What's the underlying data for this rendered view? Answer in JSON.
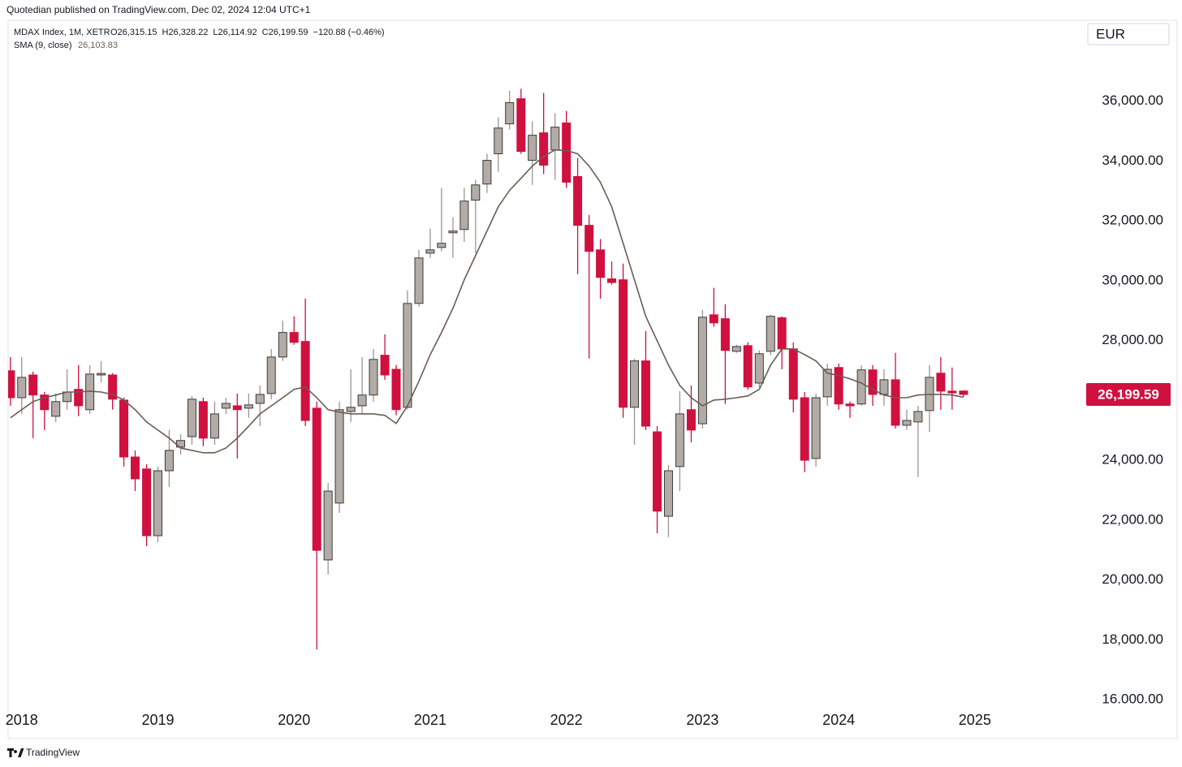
{
  "header": "Quotedian published on TradingView.com, Dec 02, 2024 12:04 UTC+1",
  "footer": "TradingView",
  "currency": "EUR",
  "chart_data": {
    "type": "candlestick",
    "title": "MDAX Index, 1M, XETR",
    "legend_values": [
      "O26,315.15",
      "H26,328.22",
      "L26,114.92",
      "C26,199.59",
      "−120.88 (−0.46%)"
    ],
    "up_color": "#b3aca6",
    "down_color": "#d0103f",
    "x": [
      2017.917,
      2018.0,
      2018.083,
      2018.167,
      2018.25,
      2018.333,
      2018.417,
      2018.5,
      2018.583,
      2018.667,
      2018.75,
      2018.833,
      2018.917,
      2019.0,
      2019.083,
      2019.167,
      2019.25,
      2019.333,
      2019.417,
      2019.5,
      2019.583,
      2019.667,
      2019.75,
      2019.833,
      2019.917,
      2020.0,
      2020.083,
      2020.167,
      2020.25,
      2020.333,
      2020.417,
      2020.5,
      2020.583,
      2020.667,
      2020.75,
      2020.833,
      2020.917,
      2021.0,
      2021.083,
      2021.167,
      2021.25,
      2021.333,
      2021.417,
      2021.5,
      2021.583,
      2021.667,
      2021.75,
      2021.833,
      2021.917,
      2022.0,
      2022.083,
      2022.167,
      2022.25,
      2022.333,
      2022.417,
      2022.5,
      2022.583,
      2022.667,
      2022.75,
      2022.833,
      2022.917,
      2023.0,
      2023.083,
      2023.167,
      2023.25,
      2023.333,
      2023.417,
      2023.5,
      2023.583,
      2023.667,
      2023.75,
      2023.833,
      2023.917,
      2024.0,
      2024.083,
      2024.167,
      2024.25,
      2024.333,
      2024.417,
      2024.5,
      2024.583,
      2024.667,
      2024.75,
      2024.833,
      2024.917
    ],
    "open": [
      26990,
      26090,
      26850,
      26180,
      25470,
      25960,
      26370,
      25690,
      26850,
      26850,
      26010,
      24110,
      23710,
      21480,
      23650,
      24440,
      24790,
      25960,
      24740,
      25740,
      25820,
      25740,
      25900,
      26230,
      27450,
      28270,
      27970,
      25740,
      20670,
      22570,
      25630,
      25820,
      26180,
      27510,
      27040,
      25770,
      29240,
      30920,
      31110,
      31600,
      31710,
      32690,
      33230,
      34240,
      35240,
      36080,
      34020,
      34940,
      34370,
      35270,
      33480,
      31850,
      31030,
      30060,
      30030,
      25770,
      27320,
      24950,
      22130,
      23790,
      25690,
      25220,
      28860,
      28730,
      27640,
      27830,
      26580,
      27640,
      28760,
      27720,
      26090,
      24060,
      26120,
      27100,
      25880,
      25880,
      27020,
      26200,
      26690,
      25170,
      25280,
      25660,
      26910,
      26310,
      26315.15
    ],
    "high": [
      27450,
      27450,
      26960,
      26280,
      26230,
      27040,
      27180,
      27180,
      27320,
      26910,
      26090,
      24330,
      23870,
      23790,
      25010,
      24870,
      26150,
      26090,
      25960,
      26090,
      26230,
      26230,
      26500,
      27720,
      28670,
      28810,
      29400,
      25960,
      23240,
      25960,
      27040,
      27450,
      27720,
      28210,
      27180,
      29680,
      31030,
      31740,
      33100,
      32120,
      33100,
      33370,
      34240,
      35460,
      36350,
      36410,
      35320,
      36270,
      35590,
      35670,
      34100,
      32200,
      31390,
      30640,
      30570,
      27400,
      28320,
      25140,
      23840,
      26310,
      26500,
      29030,
      29760,
      29210,
      27860,
      27940,
      27670,
      28860,
      28810,
      27940,
      26280,
      26230,
      27230,
      27230,
      25960,
      27180,
      27180,
      27040,
      27590,
      25690,
      25820,
      27180,
      27450,
      27100,
      26328.22
    ],
    "low": [
      25820,
      25550,
      24740,
      25010,
      25280,
      25690,
      25470,
      25550,
      26600,
      25690,
      23790,
      22970,
      21130,
      21260,
      23110,
      24190,
      24520,
      24470,
      24520,
      25550,
      24060,
      25420,
      25140,
      26040,
      27320,
      27860,
      25140,
      17680,
      20180,
      22240,
      25280,
      25550,
      25960,
      26690,
      25500,
      25690,
      29130,
      30760,
      30980,
      30760,
      31300,
      30920,
      32930,
      33640,
      35050,
      34240,
      33200,
      33560,
      33370,
      33100,
      30220,
      27400,
      29400,
      29870,
      25420,
      24520,
      25010,
      21560,
      21430,
      22970,
      24600,
      25060,
      28460,
      25880,
      27590,
      26360,
      26420,
      27510,
      27040,
      25600,
      23600,
      23790,
      25820,
      25690,
      25420,
      25820,
      25820,
      25820,
      25060,
      25010,
      23440,
      24950,
      25690,
      25690,
      26114.92
    ],
    "close": [
      26090,
      26770,
      26180,
      25690,
      25960,
      26280,
      25820,
      26880,
      26900,
      26040,
      24110,
      23380,
      21480,
      23650,
      24330,
      24660,
      26040,
      24740,
      25550,
      25900,
      25690,
      25850,
      26200,
      27450,
      28270,
      27940,
      25330,
      20990,
      22970,
      25690,
      25770,
      26180,
      27370,
      26850,
      25690,
      29240,
      30760,
      31030,
      31250,
      31660,
      32660,
      33200,
      34020,
      35100,
      35950,
      34320,
      34860,
      33860,
      35130,
      33290,
      31850,
      30980,
      30110,
      29940,
      25770,
      27320,
      25140,
      22300,
      23650,
      25550,
      25010,
      28780,
      28590,
      27670,
      27800,
      26450,
      27560,
      28810,
      27720,
      26040,
      24000,
      26090,
      27040,
      25880,
      25820,
      27020,
      26200,
      26690,
      25170,
      25330,
      25630,
      26770,
      26310,
      26250,
      26199.59
    ],
    "sma": {
      "name": "SMA (9, close)",
      "color": "#6b5c52",
      "value_label": "26,103.83",
      "values": [
        25420,
        25690,
        25960,
        26090,
        26180,
        26280,
        26280,
        26310,
        26280,
        26200,
        26010,
        25690,
        25280,
        25010,
        24740,
        24410,
        24330,
        24250,
        24250,
        24410,
        24740,
        25140,
        25550,
        25820,
        26090,
        26370,
        26450,
        26090,
        25690,
        25610,
        25550,
        25550,
        25550,
        25500,
        25230,
        25820,
        26640,
        27530,
        28270,
        29080,
        30030,
        30840,
        31660,
        32470,
        33020,
        33420,
        33830,
        34150,
        34370,
        34350,
        34240,
        33830,
        33290,
        32470,
        31250,
        30030,
        28810,
        27990,
        27180,
        26500,
        26090,
        25820,
        26010,
        26040,
        26090,
        26150,
        26370,
        27180,
        27720,
        27720,
        27530,
        27320,
        26910,
        26830,
        26720,
        26580,
        26370,
        26180,
        26090,
        26090,
        26180,
        26200,
        26200,
        26180,
        26103.83
      ]
    },
    "last_price": {
      "value": 26199.59,
      "label": "26,199.59"
    },
    "xlim": [
      2017.9,
      2025.8
    ],
    "xticks": [
      2018,
      2019,
      2020,
      2021,
      2022,
      2023,
      2024,
      2025
    ],
    "ylim": [
      15650,
      38700
    ],
    "yticks": [
      {
        "value": 16000,
        "label": "16.000.00"
      },
      {
        "value": 18000,
        "label": "18,000.00"
      },
      {
        "value": 20000,
        "label": "20,000.00"
      },
      {
        "value": 22000,
        "label": "22,000.00"
      },
      {
        "value": 24000,
        "label": "24,000.00"
      },
      {
        "value": 26000,
        "label": "26,000.00"
      },
      {
        "value": 28000,
        "label": "28,000.00"
      },
      {
        "value": 30000,
        "label": "30,000.00"
      },
      {
        "value": 32000,
        "label": "32,000.00"
      },
      {
        "value": 34000,
        "label": "34,000.00"
      },
      {
        "value": 36000,
        "label": "36,000.00"
      }
    ],
    "grid": false
  }
}
